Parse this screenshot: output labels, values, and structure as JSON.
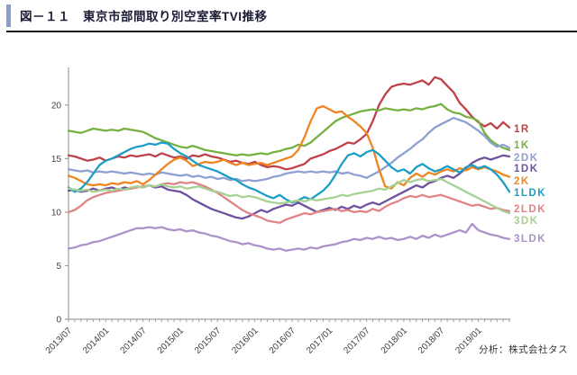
{
  "header": {
    "title": "図－１１　東京市部間取り別空室率TVI推移"
  },
  "footer": {
    "credit": "分析：株式会社タス"
  },
  "colors": {
    "accent_bar": "#8b9ccd",
    "axis": "#9e9e9e",
    "tick_text": "#404040"
  },
  "chart_data": {
    "type": "line",
    "title": "東京市部間取り別空室率TVI推移",
    "xlabel": "",
    "ylabel": "",
    "ylim": [
      0,
      23.5
    ],
    "yticks": [
      0,
      5,
      10,
      15,
      20
    ],
    "grid": false,
    "legend_position": "right",
    "months": 72,
    "x_start": "2013/07",
    "x_end": "2019/06",
    "x_labels": [
      "2013/07",
      "2014/01",
      "2014/07",
      "2015/01",
      "2015/07",
      "2016/01",
      "2016/07",
      "2017/01",
      "2017/07",
      "2018/01",
      "2018/07",
      "2019/01"
    ],
    "series": [
      {
        "name": "1R",
        "color": "#bf4149",
        "values": [
          15.3,
          15.2,
          15.0,
          14.8,
          14.9,
          15.1,
          14.8,
          15.0,
          15.2,
          15.1,
          15.3,
          15.2,
          15.3,
          15.4,
          15.2,
          15.5,
          15.3,
          15.1,
          15.2,
          15.0,
          15.3,
          15.2,
          15.4,
          15.2,
          15.1,
          14.9,
          14.7,
          14.8,
          14.6,
          14.5,
          14.7,
          14.4,
          14.2,
          14.3,
          14.2,
          14.0,
          14.1,
          14.3,
          14.5,
          15.0,
          15.2,
          15.4,
          15.7,
          15.9,
          16.2,
          16.5,
          16.4,
          16.8,
          17.3,
          18.5,
          20.0,
          21.0,
          21.7,
          21.9,
          22.0,
          21.9,
          22.1,
          22.3,
          21.9,
          22.6,
          22.4,
          21.8,
          21.2,
          20.2,
          19.6,
          18.9,
          18.4,
          18.0,
          18.3,
          17.8,
          18.4,
          17.9
        ]
      },
      {
        "name": "1K",
        "color": "#76b041",
        "values": [
          17.6,
          17.5,
          17.4,
          17.6,
          17.8,
          17.7,
          17.6,
          17.7,
          17.6,
          17.8,
          17.7,
          17.6,
          17.5,
          17.2,
          16.9,
          16.7,
          16.5,
          16.3,
          16.1,
          16.0,
          16.2,
          16.0,
          15.8,
          15.7,
          15.6,
          15.5,
          15.4,
          15.3,
          15.4,
          15.3,
          15.4,
          15.5,
          15.4,
          15.6,
          15.7,
          15.9,
          16.0,
          16.3,
          16.2,
          16.5,
          17.0,
          17.5,
          18.0,
          18.5,
          18.8,
          19.0,
          19.2,
          19.4,
          19.5,
          19.6,
          19.5,
          19.7,
          19.6,
          19.5,
          19.6,
          19.5,
          19.7,
          19.6,
          19.8,
          19.9,
          20.1,
          19.6,
          19.3,
          19.2,
          18.9,
          18.8,
          18.5,
          17.4,
          16.7,
          16.3,
          16.0,
          15.8
        ]
      },
      {
        "name": "2DK",
        "color": "#8da0d0",
        "values": [
          14.0,
          13.9,
          13.8,
          13.9,
          13.7,
          13.8,
          13.7,
          13.8,
          13.7,
          13.6,
          13.7,
          13.6,
          13.5,
          13.6,
          13.5,
          13.7,
          13.6,
          13.5,
          13.4,
          13.5,
          13.3,
          13.4,
          13.2,
          13.3,
          13.1,
          13.2,
          13.0,
          13.1,
          12.9,
          13.0,
          12.9,
          13.0,
          13.1,
          13.3,
          13.4,
          13.6,
          13.7,
          13.8,
          13.7,
          13.8,
          13.7,
          13.8,
          13.7,
          13.8,
          13.6,
          13.7,
          13.5,
          13.4,
          13.2,
          13.5,
          13.8,
          14.2,
          14.6,
          15.1,
          15.5,
          15.9,
          16.4,
          16.8,
          17.4,
          17.9,
          18.2,
          18.5,
          18.8,
          18.6,
          18.4,
          18.0,
          17.6,
          17.1,
          16.5,
          16.1,
          16.3,
          16.0
        ]
      },
      {
        "name": "1DK",
        "color": "#6f519f",
        "values": [
          12.0,
          12.1,
          11.9,
          12.0,
          12.2,
          12.0,
          12.2,
          12.3,
          12.1,
          12.3,
          12.2,
          12.4,
          12.3,
          12.5,
          12.3,
          12.4,
          12.1,
          12.0,
          11.9,
          11.6,
          11.2,
          10.9,
          10.6,
          10.3,
          10.1,
          9.9,
          9.7,
          9.5,
          9.4,
          9.6,
          9.9,
          10.2,
          10.0,
          10.3,
          10.5,
          10.7,
          10.6,
          10.9,
          10.6,
          10.3,
          10.0,
          10.2,
          10.4,
          10.2,
          10.5,
          10.3,
          10.6,
          10.4,
          10.7,
          10.9,
          10.7,
          11.0,
          11.3,
          11.6,
          11.9,
          12.2,
          12.5,
          12.3,
          12.7,
          12.9,
          13.2,
          13.4,
          13.2,
          13.6,
          14.1,
          14.6,
          14.9,
          15.1,
          14.9,
          15.1,
          15.3,
          15.2
        ]
      },
      {
        "name": "2K",
        "color": "#ef8522",
        "values": [
          13.4,
          13.2,
          12.9,
          12.6,
          12.5,
          12.6,
          12.5,
          12.7,
          12.6,
          12.8,
          12.7,
          12.9,
          12.6,
          13.0,
          13.5,
          14.0,
          14.5,
          14.9,
          15.1,
          14.8,
          14.3,
          14.5,
          14.7,
          14.6,
          14.7,
          14.9,
          14.6,
          14.4,
          14.6,
          14.4,
          14.5,
          14.6,
          14.4,
          14.6,
          14.8,
          15.0,
          15.2,
          15.8,
          17.0,
          18.5,
          19.7,
          19.9,
          19.6,
          19.3,
          19.4,
          18.9,
          18.5,
          18.0,
          17.4,
          16.0,
          14.0,
          12.4,
          12.2,
          12.8,
          12.5,
          13.2,
          13.6,
          13.3,
          13.7,
          13.5,
          13.8,
          14.0,
          13.8,
          14.1,
          13.9,
          14.2,
          14.0,
          14.2,
          14.0,
          13.8,
          13.5,
          13.3
        ]
      },
      {
        "name": "1LDK",
        "color": "#1c9ec6",
        "values": [
          12.3,
          11.9,
          12.2,
          12.8,
          13.6,
          14.4,
          14.8,
          15.0,
          15.3,
          15.6,
          15.9,
          16.1,
          16.2,
          16.4,
          16.3,
          16.5,
          16.4,
          15.9,
          15.5,
          15.2,
          14.8,
          14.4,
          14.2,
          14.0,
          13.8,
          13.5,
          13.2,
          13.0,
          12.6,
          12.3,
          12.1,
          11.8,
          11.5,
          11.3,
          11.6,
          11.2,
          10.9,
          11.1,
          11.4,
          11.2,
          11.6,
          12.0,
          12.6,
          13.5,
          14.5,
          15.3,
          15.5,
          15.2,
          15.6,
          15.8,
          15.4,
          14.8,
          14.2,
          13.8,
          14.0,
          13.6,
          14.2,
          14.5,
          14.1,
          13.8,
          14.0,
          14.3,
          14.0,
          13.7,
          14.2,
          14.4,
          14.1,
          14.3,
          14.0,
          13.5,
          12.8,
          11.9
        ]
      },
      {
        "name": "2LDK",
        "color": "#e28385",
        "values": [
          10.0,
          10.2,
          10.6,
          11.1,
          11.4,
          11.6,
          11.8,
          11.9,
          12.0,
          12.1,
          12.2,
          12.3,
          12.4,
          12.5,
          12.4,
          12.6,
          12.7,
          12.6,
          12.8,
          12.7,
          12.8,
          12.6,
          12.4,
          12.1,
          11.8,
          11.4,
          11.0,
          10.6,
          10.2,
          9.9,
          9.7,
          9.5,
          9.2,
          9.1,
          9.0,
          9.3,
          9.5,
          9.7,
          9.9,
          9.8,
          10.0,
          10.1,
          10.2,
          10.3,
          10.1,
          10.2,
          10.0,
          10.1,
          10.0,
          10.3,
          10.1,
          10.5,
          10.8,
          11.0,
          11.3,
          11.5,
          11.4,
          11.6,
          11.4,
          11.5,
          11.6,
          11.4,
          11.2,
          11.0,
          10.8,
          10.6,
          10.7,
          10.5,
          10.3,
          10.4,
          10.2,
          10.1
        ]
      },
      {
        "name": "3DK",
        "color": "#a6d192",
        "values": [
          12.2,
          12.1,
          12.0,
          12.1,
          11.9,
          12.0,
          12.1,
          12.0,
          12.2,
          12.1,
          12.3,
          12.4,
          12.3,
          12.5,
          12.4,
          12.6,
          12.4,
          12.3,
          12.4,
          12.2,
          12.3,
          12.4,
          12.2,
          12.0,
          11.9,
          11.7,
          11.5,
          11.6,
          11.4,
          11.5,
          11.4,
          11.2,
          11.0,
          10.9,
          10.8,
          10.9,
          11.0,
          11.1,
          11.0,
          11.2,
          11.1,
          11.2,
          11.3,
          11.4,
          11.6,
          11.5,
          11.7,
          11.8,
          11.9,
          12.0,
          12.2,
          12.1,
          12.4,
          12.7,
          13.0,
          12.8,
          13.0,
          13.1,
          12.9,
          13.0,
          13.1,
          12.8,
          12.5,
          12.2,
          11.9,
          11.6,
          11.3,
          11.0,
          10.7,
          10.4,
          10.1,
          9.9
        ]
      },
      {
        "name": "3LDK",
        "color": "#ab92c8",
        "values": [
          6.6,
          6.7,
          6.9,
          7.0,
          7.2,
          7.3,
          7.5,
          7.7,
          7.9,
          8.1,
          8.3,
          8.5,
          8.5,
          8.6,
          8.5,
          8.6,
          8.4,
          8.3,
          8.4,
          8.2,
          8.3,
          8.1,
          8.0,
          7.8,
          7.7,
          7.5,
          7.3,
          7.2,
          7.0,
          7.1,
          6.9,
          6.8,
          6.6,
          6.5,
          6.6,
          6.4,
          6.5,
          6.6,
          6.5,
          6.7,
          6.6,
          6.8,
          6.9,
          7.0,
          7.2,
          7.3,
          7.5,
          7.4,
          7.6,
          7.5,
          7.7,
          7.5,
          7.6,
          7.4,
          7.5,
          7.7,
          7.5,
          7.8,
          7.6,
          7.9,
          7.7,
          7.9,
          8.1,
          8.3,
          8.1,
          8.9,
          8.3,
          8.1,
          7.9,
          7.8,
          7.6,
          7.5
        ]
      }
    ]
  }
}
